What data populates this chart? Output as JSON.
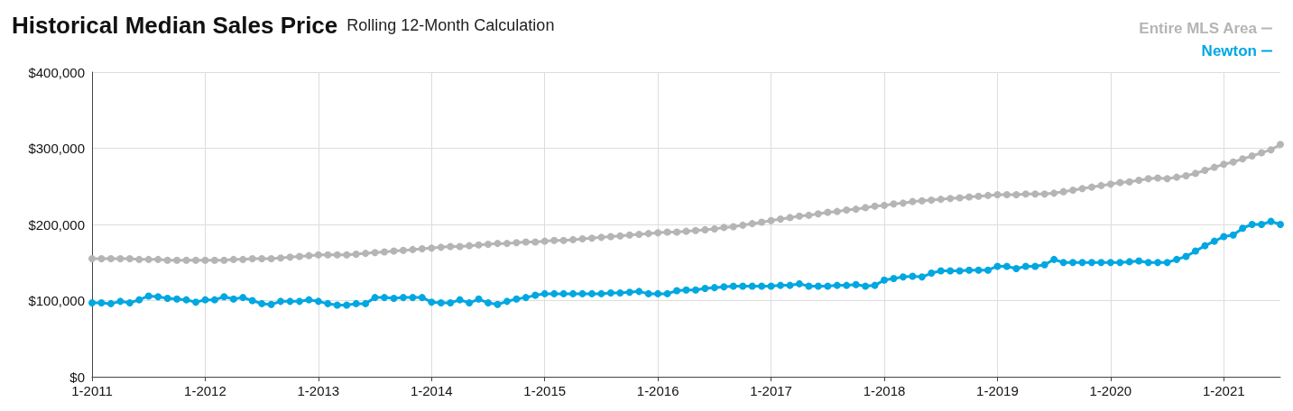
{
  "chart_data": {
    "type": "line",
    "title": "Historical Median Sales Price",
    "subtitle": "Rolling 12-Month Calculation",
    "categories": [
      "1-2011",
      null,
      null,
      null,
      null,
      null,
      null,
      null,
      null,
      null,
      null,
      null,
      "1-2012",
      null,
      null,
      null,
      null,
      null,
      null,
      null,
      null,
      null,
      null,
      null,
      "1-2013",
      null,
      null,
      null,
      null,
      null,
      null,
      null,
      null,
      null,
      null,
      null,
      "1-2014",
      null,
      null,
      null,
      null,
      null,
      null,
      null,
      null,
      null,
      null,
      null,
      "1-2015",
      null,
      null,
      null,
      null,
      null,
      null,
      null,
      null,
      null,
      null,
      null,
      "1-2016",
      null,
      null,
      null,
      null,
      null,
      null,
      null,
      null,
      null,
      null,
      null,
      "1-2017",
      null,
      null,
      null,
      null,
      null,
      null,
      null,
      null,
      null,
      null,
      null,
      "1-2018",
      null,
      null,
      null,
      null,
      null,
      null,
      null,
      null,
      null,
      null,
      null,
      "1-2019",
      null,
      null,
      null,
      null,
      null,
      null,
      null,
      null,
      null,
      null,
      null,
      "1-2020",
      null,
      null,
      null,
      null,
      null,
      null,
      null,
      null,
      null,
      null,
      null,
      "1-2021",
      null,
      null,
      null,
      null,
      null,
      null
    ],
    "series": [
      {
        "name": "Entire MLS Area",
        "color": "#b4b5b4",
        "values": [
          155000,
          155000,
          155000,
          155000,
          155000,
          154000,
          154000,
          154000,
          153000,
          153000,
          153000,
          153000,
          153000,
          153000,
          153000,
          154000,
          154000,
          155000,
          155000,
          155000,
          156000,
          157000,
          158000,
          159000,
          160000,
          160000,
          160000,
          160000,
          161000,
          162000,
          163000,
          164000,
          165000,
          166000,
          167000,
          168000,
          169000,
          170000,
          171000,
          171000,
          172000,
          173000,
          174000,
          175000,
          175000,
          176000,
          177000,
          177000,
          178000,
          179000,
          179000,
          180000,
          181000,
          182000,
          183000,
          184000,
          185000,
          186000,
          187000,
          188000,
          189000,
          190000,
          190000,
          191000,
          192000,
          193000,
          194000,
          196000,
          197000,
          199000,
          201000,
          203000,
          205000,
          207000,
          209000,
          211000,
          212000,
          214000,
          216000,
          217000,
          219000,
          220000,
          222000,
          224000,
          225000,
          227000,
          228000,
          230000,
          231000,
          232000,
          233000,
          234000,
          235000,
          236000,
          237000,
          238000,
          239000,
          239000,
          239000,
          240000,
          240000,
          240000,
          241000,
          243000,
          245000,
          247000,
          249000,
          251000,
          253000,
          255000,
          256000,
          258000,
          260000,
          261000,
          260000,
          262000,
          264000,
          267000,
          271000,
          275000,
          279000,
          282000,
          286000,
          290000,
          294000,
          298000,
          305000
        ]
      },
      {
        "name": "Newton",
        "color": "#00a7e1",
        "values": [
          97000,
          97000,
          96000,
          99000,
          97000,
          101000,
          106000,
          105000,
          103000,
          102000,
          101000,
          98000,
          101000,
          101000,
          105000,
          102000,
          104000,
          100000,
          96000,
          95000,
          99000,
          99000,
          99000,
          101000,
          99000,
          96000,
          94000,
          94000,
          96000,
          96000,
          104000,
          104000,
          103000,
          104000,
          104000,
          104000,
          98000,
          97000,
          97000,
          101000,
          97000,
          102000,
          97000,
          95000,
          99000,
          102000,
          104000,
          107000,
          109000,
          109000,
          109000,
          109000,
          109000,
          109000,
          109000,
          110000,
          110000,
          111000,
          112000,
          109000,
          109000,
          109000,
          113000,
          114000,
          114000,
          116000,
          117000,
          118000,
          119000,
          119000,
          119000,
          119000,
          119000,
          120000,
          120000,
          122000,
          119000,
          119000,
          119000,
          120000,
          120000,
          121000,
          119000,
          120000,
          127000,
          129000,
          131000,
          132000,
          131000,
          136000,
          139000,
          139000,
          139000,
          140000,
          140000,
          140000,
          145000,
          145000,
          142000,
          145000,
          145000,
          147000,
          154000,
          150000,
          150000,
          150000,
          150000,
          150000,
          150000,
          150000,
          151000,
          152000,
          150000,
          150000,
          150000,
          154000,
          158000,
          165000,
          172000,
          178000,
          184000,
          186000,
          195000,
          200000,
          200000,
          204000,
          200000
        ]
      }
    ],
    "ylim": [
      0,
      400000
    ],
    "yticks": [
      {
        "value": 0,
        "label": "$0"
      },
      {
        "value": 100000,
        "label": "$100,000"
      },
      {
        "value": 200000,
        "label": "$200,000"
      },
      {
        "value": 300000,
        "label": "$300,000"
      },
      {
        "value": 400000,
        "label": "$400,000"
      }
    ],
    "grid": true,
    "legend": "top right",
    "marker": "circle",
    "line_style": "solid"
  }
}
